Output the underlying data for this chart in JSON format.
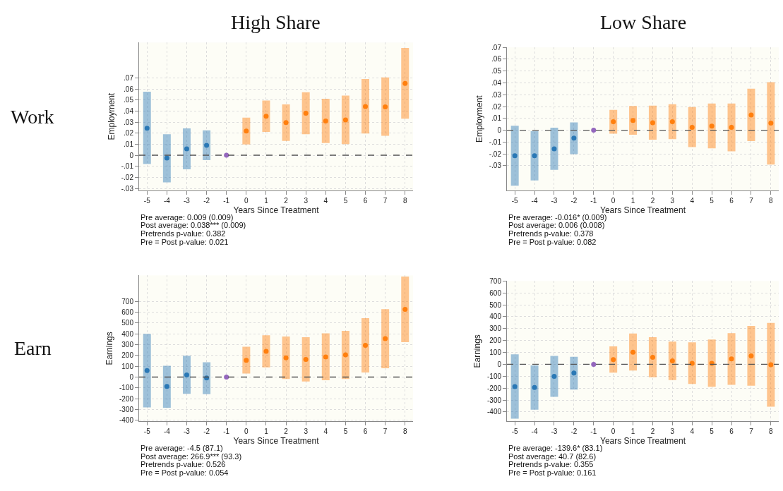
{
  "chart_data": [
    {
      "type": "scatter",
      "title": "High Share",
      "xlabel": "Years Since Treatment",
      "ylabel": "Employment",
      "xlim": [
        -5.4,
        8.4
      ],
      "xticks": [
        -5,
        -4,
        -3,
        -2,
        -1,
        0,
        1,
        2,
        3,
        4,
        5,
        6,
        7,
        8
      ],
      "ylim": [
        -0.032,
        0.102
      ],
      "yticks": [
        {
          "value": -0.03,
          "label": "-.03"
        },
        {
          "value": -0.02,
          "label": "-.02"
        },
        {
          "value": -0.01,
          "label": "-.01"
        },
        0,
        {
          "value": 0.01,
          "label": ".01"
        },
        {
          "value": 0.02,
          "label": ".02"
        },
        {
          "value": 0.03,
          "label": ".03"
        },
        {
          "value": 0.04,
          "label": ".04"
        },
        {
          "value": 0.05,
          "label": ".05"
        },
        {
          "value": 0.06,
          "label": ".06"
        },
        {
          "value": 0.07,
          "label": ".07"
        }
      ],
      "grid": true,
      "marker": "circle",
      "ref_lines": [
        {
          "axis": "y",
          "value": 0,
          "color": "#555555",
          "line_style": "dashed"
        }
      ],
      "series": [
        {
          "color": "#2a78b5",
          "x": [
            -5,
            -4,
            -3,
            -2
          ],
          "values": [
            0.0245,
            -0.0025,
            0.0058,
            0.009
          ],
          "errors": [
            [
              -0.008,
              0.0575
            ],
            [
              -0.0245,
              0.019
            ],
            [
              -0.0128,
              0.0242
            ],
            [
              -0.0045,
              0.0225
            ]
          ]
        },
        {
          "color": "#9467bd",
          "x": [
            -1
          ],
          "values": [
            0
          ]
        },
        {
          "color": "#ff7f0e",
          "x": [
            0,
            1,
            2,
            3,
            4,
            5,
            6,
            7,
            8
          ],
          "values": [
            0.0218,
            0.0352,
            0.0295,
            0.038,
            0.031,
            0.032,
            0.044,
            0.0438,
            0.065
          ],
          "errors": [
            [
              0.0097,
              0.034
            ],
            [
              0.021,
              0.0495
            ],
            [
              0.013,
              0.046
            ],
            [
              0.019,
              0.057
            ],
            [
              0.011,
              0.051
            ],
            [
              0.01,
              0.054
            ],
            [
              0.0197,
              0.069
            ],
            [
              0.0175,
              0.0703
            ],
            [
              0.033,
              0.097
            ]
          ]
        }
      ],
      "annotations": [
        "Work",
        "Pre average: 0.009 (0.009)",
        "Post average: 0.038*** (0.009)",
        "Pretrends p-value: 0.382",
        "Pre = Post p-value: 0.021"
      ]
    },
    {
      "type": "scatter",
      "title": "Low Share",
      "xlabel": "Years Since Treatment",
      "ylabel": "Employment",
      "xlim": [
        -5.4,
        8.4
      ],
      "xticks": [
        -5,
        -4,
        -3,
        -2,
        -1,
        0,
        1,
        2,
        3,
        4,
        5,
        6,
        7,
        8
      ],
      "ylim": [
        -0.051,
        0.07
      ],
      "yticks": [
        {
          "value": -0.03,
          "label": "-.03"
        },
        {
          "value": -0.02,
          "label": "-.02"
        },
        {
          "value": -0.01,
          "label": "-.01"
        },
        0,
        {
          "value": 0.01,
          "label": ".01"
        },
        {
          "value": 0.02,
          "label": ".02"
        },
        {
          "value": 0.03,
          "label": ".03"
        },
        {
          "value": 0.04,
          "label": ".04"
        },
        {
          "value": 0.05,
          "label": ".05"
        },
        {
          "value": 0.06,
          "label": ".06"
        },
        {
          "value": 0.07,
          "label": ".07"
        }
      ],
      "grid": true,
      "marker": "circle",
      "ref_lines": [
        {
          "axis": "y",
          "value": 0,
          "color": "#555555",
          "line_style": "dashed"
        }
      ],
      "series": [
        {
          "color": "#2a78b5",
          "x": [
            -5,
            -4,
            -3,
            -2
          ],
          "values": [
            -0.0215,
            -0.0215,
            -0.0157,
            -0.0067
          ],
          "errors": [
            [
              -0.0469,
              0.0037
            ],
            [
              -0.0424,
              -0.0008
            ],
            [
              -0.0335,
              0.0022
            ],
            [
              -0.0202,
              0.0066
            ]
          ]
        },
        {
          "color": "#9467bd",
          "x": [
            -1
          ],
          "values": [
            0
          ]
        },
        {
          "color": "#ff7f0e",
          "x": [
            0,
            1,
            2,
            3,
            4,
            5,
            6,
            7,
            8
          ],
          "values": [
            0.0072,
            0.0083,
            0.0063,
            0.0072,
            0.0025,
            0.0035,
            0.0025,
            0.0128,
            0.006
          ],
          "errors": [
            [
              -0.003,
              0.0172
            ],
            [
              -0.0038,
              0.0205
            ],
            [
              -0.008,
              0.0207
            ],
            [
              -0.0075,
              0.022
            ],
            [
              -0.0143,
              0.0195
            ],
            [
              -0.0153,
              0.0225
            ],
            [
              -0.0178,
              0.0225
            ],
            [
              -0.0092,
              0.035
            ],
            [
              -0.029,
              0.0405
            ]
          ]
        }
      ],
      "annotations": [
        "Pre average: -0.016* (0.009)",
        "Post average: 0.006 (0.008)",
        "Pretrends p-value: 0.378",
        "Pre = Post p-value: 0.082"
      ]
    },
    {
      "type": "scatter",
      "xlabel": "Years Since Treatment",
      "ylabel": "Earnings",
      "xlim": [
        -5.4,
        8.4
      ],
      "xticks": [
        -5,
        -4,
        -3,
        -2,
        -1,
        0,
        1,
        2,
        3,
        4,
        5,
        6,
        7,
        8
      ],
      "ylim": [
        -410,
        940
      ],
      "yticks": [
        -400,
        -300,
        -200,
        -100,
        0,
        100,
        200,
        300,
        400,
        500,
        600,
        700
      ],
      "grid": true,
      "marker": "circle",
      "ref_lines": [
        {
          "axis": "y",
          "value": 0,
          "color": "#555555",
          "line_style": "dashed"
        }
      ],
      "series": [
        {
          "color": "#2a78b5",
          "x": [
            -5,
            -4,
            -3,
            -2
          ],
          "values": [
            60,
            -87,
            20,
            -8
          ],
          "errors": [
            [
              -280,
              400
            ],
            [
              -283,
              105
            ],
            [
              -155,
              198
            ],
            [
              -158,
              137
            ]
          ]
        },
        {
          "color": "#9467bd",
          "x": [
            -1
          ],
          "values": [
            0
          ]
        },
        {
          "color": "#ff7f0e",
          "x": [
            0,
            1,
            2,
            3,
            4,
            5,
            6,
            7,
            8
          ],
          "values": [
            155,
            238,
            178,
            163,
            186,
            205,
            294,
            355,
            627
          ],
          "errors": [
            [
              33,
              280
            ],
            [
              90,
              387
            ],
            [
              -17,
              375
            ],
            [
              -40,
              368
            ],
            [
              -30,
              405
            ],
            [
              -17,
              427
            ],
            [
              43,
              545
            ],
            [
              82,
              628
            ],
            [
              323,
              930
            ]
          ]
        }
      ],
      "annotations": [
        "Earn",
        "Pre average: -4.5 (87.1)",
        "Post average: 266.9*** (93.3)",
        "Pretrends p-value: 0.526",
        "Pre = Post p-value: 0.054"
      ]
    },
    {
      "type": "scatter",
      "xlabel": "Years Since Treatment",
      "ylabel": "Earnings",
      "xlim": [
        -5.4,
        8.4
      ],
      "xticks": [
        -5,
        -4,
        -3,
        -2,
        -1,
        0,
        1,
        2,
        3,
        4,
        5,
        6,
        7,
        8
      ],
      "ylim": [
        -480,
        700
      ],
      "yticks": [
        -400,
        -300,
        -200,
        -100,
        0,
        100,
        200,
        300,
        400,
        500,
        600,
        700
      ],
      "grid": true,
      "marker": "circle",
      "ref_lines": [
        {
          "axis": "y",
          "value": 0,
          "color": "#555555",
          "line_style": "dashed"
        }
      ],
      "series": [
        {
          "color": "#2a78b5",
          "x": [
            -5,
            -4,
            -3,
            -2
          ],
          "values": [
            -188,
            -195,
            -102,
            -74
          ],
          "errors": [
            [
              -457,
              84
            ],
            [
              -381,
              -10
            ],
            [
              -274,
              70
            ],
            [
              -213,
              63
            ]
          ]
        },
        {
          "color": "#9467bd",
          "x": [
            -1
          ],
          "values": [
            0
          ]
        },
        {
          "color": "#ff7f0e",
          "x": [
            0,
            1,
            2,
            3,
            4,
            5,
            6,
            7,
            8
          ],
          "values": [
            40,
            102,
            59,
            29,
            8,
            8,
            45,
            70,
            -4
          ],
          "errors": [
            [
              -70,
              150
            ],
            [
              -53,
              258
            ],
            [
              -109,
              228
            ],
            [
              -133,
              190
            ],
            [
              -165,
              184
            ],
            [
              -189,
              208
            ],
            [
              -173,
              261
            ],
            [
              -180,
              322
            ],
            [
              -357,
              348
            ]
          ]
        }
      ],
      "annotations": [
        "Pre average: -139.6* (83.1)",
        "Post average: 40.7 (82.6)",
        "Pretrends p-value: 0.355",
        "Pre = Post p-value: 0.161"
      ]
    }
  ]
}
